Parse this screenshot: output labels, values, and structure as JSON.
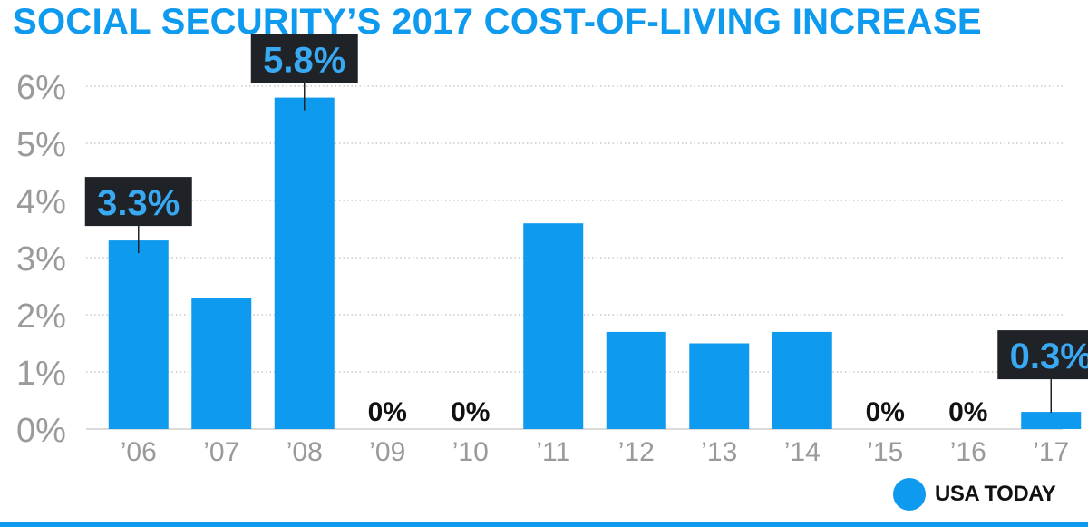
{
  "chart_data": {
    "type": "bar",
    "title": "SOCIAL SECURITY’S 2017 COST-OF-LIVING INCREASE",
    "categories": [
      "’06",
      "’07",
      "’08",
      "’09",
      "’10",
      "’11",
      "’12",
      "’13",
      "’14",
      "’15",
      "’16",
      "’17"
    ],
    "values": [
      3.3,
      2.3,
      5.8,
      0,
      0,
      3.6,
      1.7,
      1.5,
      1.7,
      0,
      0,
      0.3
    ],
    "ylim": [
      0,
      6
    ],
    "yticks": [
      "0%",
      "1%",
      "2%",
      "3%",
      "4%",
      "5%",
      "6%"
    ],
    "callouts": [
      {
        "index": 0,
        "label": "3.3%"
      },
      {
        "index": 2,
        "label": "5.8%"
      },
      {
        "index": 11,
        "label": "0.3%"
      }
    ],
    "zero_labels": [
      {
        "index": 3,
        "label": "0%"
      },
      {
        "index": 4,
        "label": "0%"
      },
      {
        "index": 9,
        "label": "0%"
      },
      {
        "index": 10,
        "label": "0%"
      }
    ],
    "grid": true,
    "xlabel": "",
    "ylabel": ""
  },
  "colors": {
    "bar": "#0d9aef",
    "callout_bg": "#1f2328",
    "callout_text": "#38a9f2",
    "axis_text": "#9a9a9a",
    "gridline": "#bdbdbd"
  },
  "branding": {
    "name": "USA TODAY",
    "icon": "blue-circle-icon"
  }
}
